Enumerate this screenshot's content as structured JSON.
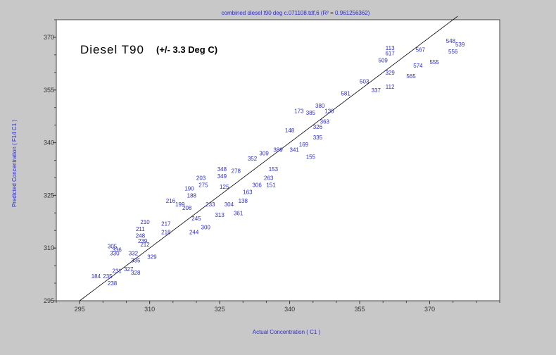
{
  "chart_data": {
    "type": "scatter",
    "title": "combined diesel t90 deg c.071108.tdf,6  (R² = 0.961256362)",
    "xlabel": "Actual Concentration ( C1 )",
    "ylabel": "Predicted Concentration ( F14 C1 )",
    "annotation_main": "Diesel T90",
    "annotation_sub": "(+/- 3.3 Deg C)",
    "xlim": [
      290,
      385
    ],
    "ylim": [
      295,
      375
    ],
    "xticks": [
      "295",
      "310",
      "325",
      "340",
      "355",
      "370"
    ],
    "yticks": [
      "295",
      "310",
      "325",
      "340",
      "355",
      "370"
    ],
    "grid": false,
    "reference_line": {
      "from": [
        295,
        295
      ],
      "to": [
        376,
        376
      ]
    },
    "marker": "point-number labels",
    "points": [
      {
        "label": "184",
        "x": 298.5,
        "y": 302.0
      },
      {
        "label": "235",
        "x": 301.0,
        "y": 302.0
      },
      {
        "label": "238",
        "x": 302.0,
        "y": 300.0
      },
      {
        "label": "231",
        "x": 303.0,
        "y": 303.5
      },
      {
        "label": "328",
        "x": 307.0,
        "y": 303.0
      },
      {
        "label": "327",
        "x": 305.5,
        "y": 304.0
      },
      {
        "label": "335",
        "x": 307.0,
        "y": 306.5
      },
      {
        "label": "330",
        "x": 302.5,
        "y": 308.5
      },
      {
        "label": "336",
        "x": 303.0,
        "y": 309.5
      },
      {
        "label": "305",
        "x": 302.0,
        "y": 310.5
      },
      {
        "label": "329",
        "x": 310.5,
        "y": 307.5
      },
      {
        "label": "332",
        "x": 306.5,
        "y": 308.5
      },
      {
        "label": "212",
        "x": 309.0,
        "y": 311.0
      },
      {
        "label": "248",
        "x": 308.0,
        "y": 313.5
      },
      {
        "label": "211",
        "x": 308.0,
        "y": 315.5
      },
      {
        "label": "210",
        "x": 309.0,
        "y": 317.5
      },
      {
        "label": "239",
        "x": 308.5,
        "y": 312.0
      },
      {
        "label": "217",
        "x": 313.5,
        "y": 317.0
      },
      {
        "label": "218",
        "x": 313.5,
        "y": 314.5
      },
      {
        "label": "244",
        "x": 319.5,
        "y": 314.5
      },
      {
        "label": "245",
        "x": 320.0,
        "y": 318.5
      },
      {
        "label": "300",
        "x": 322.0,
        "y": 316.0
      },
      {
        "label": "216",
        "x": 314.5,
        "y": 323.5
      },
      {
        "label": "199",
        "x": 316.5,
        "y": 322.5
      },
      {
        "label": "208",
        "x": 318.0,
        "y": 321.5
      },
      {
        "label": "188",
        "x": 319.0,
        "y": 325.0
      },
      {
        "label": "190",
        "x": 318.5,
        "y": 327.0
      },
      {
        "label": "203",
        "x": 321.0,
        "y": 330.0
      },
      {
        "label": "275",
        "x": 321.5,
        "y": 328.0
      },
      {
        "label": "233",
        "x": 323.0,
        "y": 322.5
      },
      {
        "label": "313",
        "x": 325.0,
        "y": 319.5
      },
      {
        "label": "361",
        "x": 329.0,
        "y": 320.0
      },
      {
        "label": "304",
        "x": 327.0,
        "y": 322.5
      },
      {
        "label": "138",
        "x": 330.0,
        "y": 323.5
      },
      {
        "label": "125",
        "x": 326.0,
        "y": 327.5
      },
      {
        "label": "163",
        "x": 331.0,
        "y": 326.0
      },
      {
        "label": "348",
        "x": 325.5,
        "y": 332.5
      },
      {
        "label": "349",
        "x": 325.5,
        "y": 330.5
      },
      {
        "label": "278",
        "x": 328.5,
        "y": 332.0
      },
      {
        "label": "352",
        "x": 332.0,
        "y": 335.5
      },
      {
        "label": "306",
        "x": 333.0,
        "y": 328.0
      },
      {
        "label": "151",
        "x": 336.0,
        "y": 328.0
      },
      {
        "label": "153",
        "x": 336.5,
        "y": 332.5
      },
      {
        "label": "263",
        "x": 335.5,
        "y": 330.0
      },
      {
        "label": "309",
        "x": 334.5,
        "y": 337.0
      },
      {
        "label": "389",
        "x": 337.5,
        "y": 338.0
      },
      {
        "label": "341",
        "x": 341.0,
        "y": 338.0
      },
      {
        "label": "148",
        "x": 340.0,
        "y": 343.5
      },
      {
        "label": "169",
        "x": 343.0,
        "y": 339.5
      },
      {
        "label": "155",
        "x": 344.5,
        "y": 336.0
      },
      {
        "label": "173",
        "x": 342.0,
        "y": 349.0
      },
      {
        "label": "385",
        "x": 344.5,
        "y": 348.5
      },
      {
        "label": "326",
        "x": 346.0,
        "y": 344.5
      },
      {
        "label": "380",
        "x": 346.5,
        "y": 350.5
      },
      {
        "label": "130",
        "x": 348.5,
        "y": 349.0
      },
      {
        "label": "363",
        "x": 347.5,
        "y": 346.0
      },
      {
        "label": "335",
        "x": 346.0,
        "y": 341.5
      },
      {
        "label": "113",
        "x": 361.5,
        "y": 367.0
      },
      {
        "label": "617",
        "x": 361.5,
        "y": 365.5
      },
      {
        "label": "509",
        "x": 360.0,
        "y": 363.5
      },
      {
        "label": "574",
        "x": 367.5,
        "y": 362.0
      },
      {
        "label": "567",
        "x": 368.0,
        "y": 366.5
      },
      {
        "label": "565",
        "x": 366.0,
        "y": 359.0
      },
      {
        "label": "555",
        "x": 371.0,
        "y": 363.0
      },
      {
        "label": "548",
        "x": 374.5,
        "y": 369.0
      },
      {
        "label": "539",
        "x": 376.5,
        "y": 368.0
      },
      {
        "label": "556",
        "x": 375.0,
        "y": 366.0
      },
      {
        "label": "112",
        "x": 361.5,
        "y": 356.0
      },
      {
        "label": "337",
        "x": 358.5,
        "y": 355.0
      },
      {
        "label": "329",
        "x": 361.5,
        "y": 360.0
      },
      {
        "label": "581",
        "x": 352.0,
        "y": 354.0
      },
      {
        "label": "503",
        "x": 356.0,
        "y": 357.5
      }
    ]
  }
}
